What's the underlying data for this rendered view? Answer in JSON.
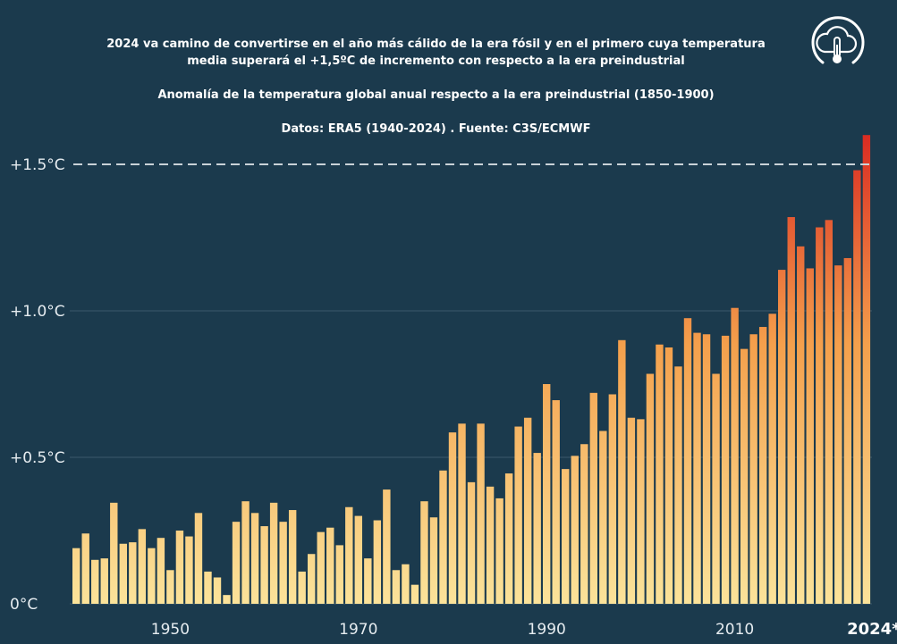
{
  "header": {
    "title_line1": "2024 va camino de convertirse en el año más cálido de la era fósil y en el primero cuya temperatura",
    "title_line2": "media superará el +1,5ºC de incremento con respecto a la era preindustrial",
    "subtitle": "Anomalía de la temperatura global anual respecto a la era preindustrial (1850-1900)",
    "source": "Datos: ERA5 (1940-2024) . Fuente: C3S/ECMWF"
  },
  "logo": {
    "icon": "cloud-thermometer-icon"
  },
  "colors": {
    "background": "#1b3a4d",
    "bar_low": "#fbe39a",
    "bar_mid": "#f4a04c",
    "bar_high": "#d92b22",
    "threshold_line": "#c9d2d8",
    "gridline": "#3b586a"
  },
  "chart_data": {
    "type": "bar",
    "title": "Anomalía de la temperatura global anual respecto a la era preindustrial (1850-1900)",
    "xlabel": "",
    "ylabel": "",
    "ylim": [
      0,
      1.6
    ],
    "grid": true,
    "yticks": [
      0,
      0.5,
      1.0,
      1.5
    ],
    "ytick_labels": [
      "0°C",
      "+0.5°C",
      "+1.0°C",
      "+1.5°C"
    ],
    "xtick_labels": [
      {
        "year": 1950,
        "label": "1950"
      },
      {
        "year": 1970,
        "label": "1970"
      },
      {
        "year": 1990,
        "label": "1990"
      },
      {
        "year": 2010,
        "label": "2010"
      },
      {
        "year": 2024,
        "label": "2024*"
      }
    ],
    "reference_line": 1.5,
    "x": [
      1940,
      1941,
      1942,
      1943,
      1944,
      1945,
      1946,
      1947,
      1948,
      1949,
      1950,
      1951,
      1952,
      1953,
      1954,
      1955,
      1956,
      1957,
      1958,
      1959,
      1960,
      1961,
      1962,
      1963,
      1964,
      1965,
      1966,
      1967,
      1968,
      1969,
      1970,
      1971,
      1972,
      1973,
      1974,
      1975,
      1976,
      1977,
      1978,
      1979,
      1980,
      1981,
      1982,
      1983,
      1984,
      1985,
      1986,
      1987,
      1988,
      1989,
      1990,
      1991,
      1992,
      1993,
      1994,
      1995,
      1996,
      1997,
      1998,
      1999,
      2000,
      2001,
      2002,
      2003,
      2004,
      2005,
      2006,
      2007,
      2008,
      2009,
      2010,
      2011,
      2012,
      2013,
      2014,
      2015,
      2016,
      2017,
      2018,
      2019,
      2020,
      2021,
      2022,
      2023,
      2024
    ],
    "values": [
      0.19,
      0.24,
      0.15,
      0.155,
      0.345,
      0.205,
      0.21,
      0.255,
      0.19,
      0.225,
      0.115,
      0.25,
      0.23,
      0.31,
      0.11,
      0.09,
      0.03,
      0.28,
      0.35,
      0.31,
      0.265,
      0.345,
      0.28,
      0.32,
      0.11,
      0.17,
      0.245,
      0.26,
      0.2,
      0.33,
      0.3,
      0.155,
      0.285,
      0.39,
      0.115,
      0.135,
      0.065,
      0.35,
      0.295,
      0.455,
      0.585,
      0.615,
      0.415,
      0.615,
      0.4,
      0.36,
      0.445,
      0.605,
      0.635,
      0.515,
      0.75,
      0.695,
      0.46,
      0.505,
      0.545,
      0.72,
      0.59,
      0.715,
      0.9,
      0.635,
      0.63,
      0.785,
      0.885,
      0.875,
      0.81,
      0.975,
      0.925,
      0.92,
      0.785,
      0.915,
      1.01,
      0.87,
      0.92,
      0.945,
      0.99,
      1.14,
      1.32,
      1.22,
      1.145,
      1.285,
      1.31,
      1.155,
      1.18,
      1.48,
      1.6
    ]
  }
}
